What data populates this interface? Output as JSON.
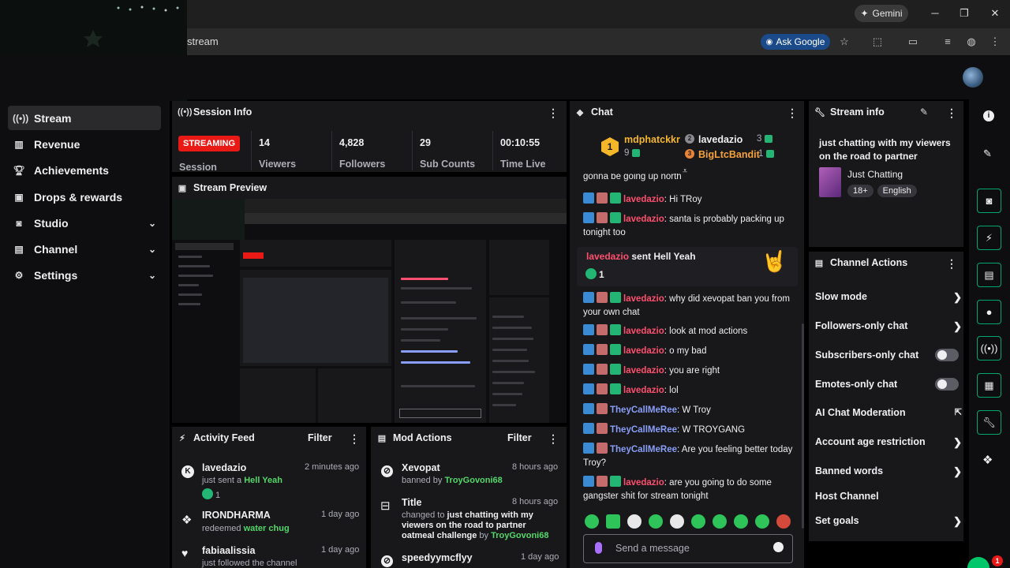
{
  "browser": {
    "gemini_label": "Gemini",
    "address_text": "stream",
    "ask_google_label": "Ask Google",
    "window_controls": [
      "minimize-icon",
      "restore-icon",
      "close-icon"
    ]
  },
  "sidebar": {
    "items": [
      {
        "label": "Stream",
        "icon": "broadcast-icon",
        "active": true
      },
      {
        "label": "Revenue",
        "icon": "chart-icon"
      },
      {
        "label": "Achievements",
        "icon": "trophy-icon"
      },
      {
        "label": "Drops & rewards",
        "icon": "gift-icon"
      },
      {
        "label": "Studio",
        "icon": "camera-icon",
        "expandable": true
      },
      {
        "label": "Channel",
        "icon": "channel-icon",
        "expandable": true
      },
      {
        "label": "Settings",
        "icon": "gear-icon",
        "expandable": true
      }
    ]
  },
  "session_info": {
    "title": "Session Info",
    "status_badge": "STREAMING",
    "session_label": "Session",
    "stats": [
      {
        "value": "14",
        "label": "Viewers"
      },
      {
        "value": "4,828",
        "label": "Followers"
      },
      {
        "value": "29",
        "label": "Sub Counts"
      },
      {
        "value": "00:10:55",
        "label": "Time Live"
      }
    ]
  },
  "stream_preview": {
    "title": "Stream Preview"
  },
  "activity_feed": {
    "title": "Activity Feed",
    "filter_label": "Filter",
    "items": [
      {
        "name": "lavedazio",
        "pre": "just sent a ",
        "highlight": "Hell Yeah",
        "count": "1",
        "time": "2 minutes ago"
      },
      {
        "name": "IRONDHARMA",
        "pre": "redeemed ",
        "highlight": "water chug",
        "time": "1 day ago"
      },
      {
        "name": "fabiaalissia",
        "pre": "just followed the channel",
        "highlight": "",
        "time": "1 day ago"
      }
    ]
  },
  "mod_actions": {
    "title": "Mod Actions",
    "filter_label": "Filter",
    "items": [
      {
        "name": "Xevopat",
        "pre": "banned by ",
        "by": "TroyGovoni68",
        "time": "8 hours ago"
      },
      {
        "name": "Title",
        "pre": "changed to ",
        "bold": "just chatting with my viewers on the road to partner oatmeal challenge",
        "mid": " by ",
        "by": "TroyGovoni68",
        "time": "8 hours ago"
      },
      {
        "name": "speedyymcflyy",
        "time": "1 day ago"
      }
    ]
  },
  "chat": {
    "title": "Chat",
    "leaderboard": {
      "first": {
        "rank": "1",
        "name": "mdphatckkr",
        "count": "9"
      },
      "second": {
        "rank": "2",
        "name": "lavedazio",
        "count": "3"
      },
      "third": {
        "rank": "3",
        "name": "BigLtcBandit",
        "count": "1"
      }
    },
    "cutoff_text": "gonna be going up north",
    "messages_a": [
      {
        "user": "lavedazio",
        "color": "red",
        "text": "Hi TRoy"
      },
      {
        "user": "lavedazio",
        "color": "red",
        "text": "santa is probably packing up tonight too"
      }
    ],
    "gift": {
      "user": "lavedazio",
      "text": " sent Hell Yeah",
      "count": "1"
    },
    "messages_b": [
      {
        "user": "lavedazio",
        "color": "red",
        "text": "why did xevopat ban you from your own chat"
      },
      {
        "user": "lavedazio",
        "color": "red",
        "text": "look at mod actions"
      },
      {
        "user": "lavedazio",
        "color": "red",
        "text": "o my bad"
      },
      {
        "user": "lavedazio",
        "color": "red",
        "text": "you are right"
      },
      {
        "user": "lavedazio",
        "color": "red",
        "text": "lol"
      },
      {
        "user": "TheyCallMeRee",
        "color": "blue",
        "text": "W Troy"
      },
      {
        "user": "TheyCallMeRee",
        "color": "blue",
        "text": "W TROYGANG"
      },
      {
        "user": "TheyCallMeRee",
        "color": "blue",
        "text": "Are you feeling better today Troy?"
      },
      {
        "user": "lavedazio",
        "color": "red",
        "text": "are you going to do some gangster shit for stream tonight"
      }
    ],
    "input_placeholder": "Send a message"
  },
  "stream_info": {
    "title": "Stream info",
    "stream_title": "just chatting with my viewers on the road to partner",
    "category": "Just Chatting",
    "tags": [
      "18+",
      "English"
    ]
  },
  "channel_actions": {
    "title": "Channel Actions",
    "rows": [
      {
        "label": "Slow mode",
        "control": "chevron"
      },
      {
        "label": "Followers-only chat",
        "control": "chevron"
      },
      {
        "label": "Subscribers-only chat",
        "control": "toggle"
      },
      {
        "label": "Emotes-only chat",
        "control": "toggle"
      },
      {
        "label": "AI Chat Moderation",
        "control": "external"
      },
      {
        "label": "Account age restriction",
        "control": "chevron"
      },
      {
        "label": "Banned words",
        "control": "chevron"
      },
      {
        "label": "Host Channel",
        "control": "none"
      },
      {
        "label": "Set goals",
        "control": "chevron"
      }
    ]
  },
  "quick_actions": {
    "notification_count": "1"
  },
  "colors": {
    "accent_green": "#00f593",
    "live_red": "#e91916",
    "panel": "#18181b",
    "page": "#0e0e10"
  }
}
